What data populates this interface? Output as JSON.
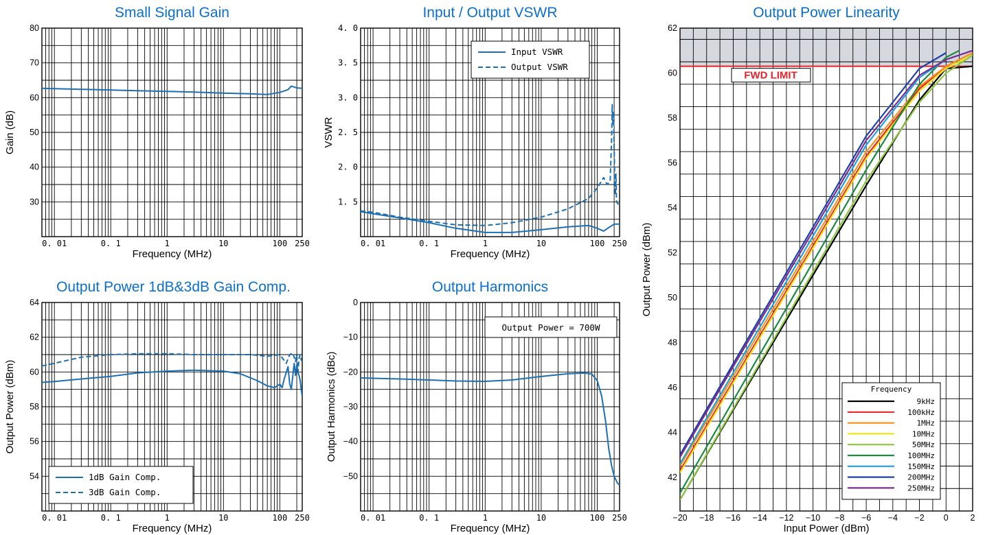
{
  "chart_data": [
    {
      "id": "gain",
      "type": "line",
      "title": "Small Signal Gain",
      "xlabel": "Frequency (MHz)",
      "ylabel": "Gain (dB)",
      "x_scale": "log",
      "xlim": [
        0.006,
        250
      ],
      "ylim": [
        20,
        80
      ],
      "yticks": [
        30,
        40,
        50,
        60,
        70,
        80
      ],
      "xticks": [
        {
          "v": 0.01,
          "label": "0. 01"
        },
        {
          "v": 0.1,
          "label": "0. 1"
        },
        {
          "v": 1,
          "label": "1"
        },
        {
          "v": 10,
          "label": "10"
        },
        {
          "v": 100,
          "label": "100"
        },
        {
          "v": 250,
          "label": "250"
        }
      ],
      "series": [
        {
          "color": "#1a6fb5",
          "dash": false,
          "x": [
            0.006,
            0.01,
            0.03,
            0.1,
            0.3,
            1,
            3,
            10,
            30,
            60,
            100,
            140,
            160,
            200,
            250
          ],
          "y": [
            62.7,
            62.6,
            62.4,
            62.2,
            62.0,
            61.8,
            61.6,
            61.3,
            61.1,
            60.9,
            61.5,
            62.3,
            63.3,
            62.8,
            62.7
          ]
        }
      ]
    },
    {
      "id": "vswr",
      "type": "line",
      "title": "Input / Output VSWR",
      "xlabel": "Frequency (MHz)",
      "ylabel": "VSWR",
      "x_scale": "log",
      "xlim": [
        0.006,
        250
      ],
      "ylim": [
        1.0,
        4.0
      ],
      "yticks": [
        {
          "v": 1.5,
          "label": "1. 5"
        },
        {
          "v": 2.0,
          "label": "2. 0"
        },
        {
          "v": 2.5,
          "label": "2. 5"
        },
        {
          "v": 3.0,
          "label": "3. 0"
        },
        {
          "v": 3.5,
          "label": "3. 5"
        },
        {
          "v": 4.0,
          "label": "4. 0"
        }
      ],
      "xticks": [
        {
          "v": 0.01,
          "label": "0. 01"
        },
        {
          "v": 0.1,
          "label": "0. 1"
        },
        {
          "v": 1,
          "label": "1"
        },
        {
          "v": 10,
          "label": "10"
        },
        {
          "v": 100,
          "label": "100"
        },
        {
          "v": 250,
          "label": "250"
        }
      ],
      "legend": [
        {
          "name": "Input VSWR",
          "dash": false
        },
        {
          "name": "Output VSWR",
          "dash": true
        }
      ],
      "series": [
        {
          "name": "Input VSWR",
          "color": "#1a6fb5",
          "dash": false,
          "x": [
            0.006,
            0.01,
            0.03,
            0.1,
            0.3,
            1,
            3,
            10,
            30,
            70,
            100,
            130,
            160,
            200,
            250
          ],
          "y": [
            1.36,
            1.33,
            1.27,
            1.2,
            1.12,
            1.06,
            1.06,
            1.1,
            1.14,
            1.16,
            1.12,
            1.08,
            1.13,
            1.18,
            1.18
          ]
        },
        {
          "name": "Output VSWR",
          "color": "#1a6fb5",
          "dash": true,
          "x": [
            0.006,
            0.01,
            0.03,
            0.1,
            0.3,
            1,
            3,
            10,
            30,
            70,
            100,
            130,
            150,
            170,
            180,
            185,
            190,
            195,
            200,
            205,
            210,
            215,
            220,
            230,
            250
          ],
          "y": [
            1.37,
            1.35,
            1.28,
            1.22,
            1.17,
            1.16,
            1.2,
            1.28,
            1.4,
            1.55,
            1.7,
            1.85,
            1.75,
            1.8,
            2.4,
            2.9,
            2.6,
            2.8,
            2.3,
            1.8,
            1.6,
            1.9,
            1.5,
            1.48,
            1.45
          ]
        }
      ]
    },
    {
      "id": "comp",
      "type": "line",
      "title": "Output Power 1dB&3dB Gain Comp.",
      "xlabel": "Frequency (MHz)",
      "ylabel": "Output Power (dBm)",
      "x_scale": "log",
      "xlim": [
        0.006,
        250
      ],
      "ylim": [
        52,
        64
      ],
      "yticks": [
        54,
        56,
        58,
        60,
        62,
        64
      ],
      "xticks": [
        {
          "v": 0.01,
          "label": "0. 01"
        },
        {
          "v": 0.1,
          "label": "0. 1"
        },
        {
          "v": 1,
          "label": "1"
        },
        {
          "v": 10,
          "label": "10"
        },
        {
          "v": 100,
          "label": "100"
        },
        {
          "v": 250,
          "label": "250"
        }
      ],
      "legend": [
        {
          "name": "1dB Gain Comp.",
          "dash": false
        },
        {
          "name": "3dB Gain Comp.",
          "dash": true
        }
      ],
      "series": [
        {
          "name": "1dB Gain Comp.",
          "color": "#1a6fb5",
          "dash": false,
          "x": [
            0.006,
            0.01,
            0.03,
            0.1,
            0.3,
            1,
            3,
            10,
            20,
            40,
            60,
            80,
            100,
            110,
            120,
            140,
            150,
            160,
            180,
            190,
            200,
            210,
            220,
            230,
            240,
            250
          ],
          "y": [
            59.4,
            59.45,
            59.6,
            59.75,
            59.95,
            60.05,
            60.1,
            60.05,
            59.9,
            59.5,
            59.2,
            59.1,
            59.3,
            59.1,
            59.6,
            60.3,
            59.3,
            59.0,
            60.5,
            59.8,
            60.4,
            60.0,
            59.8,
            59.5,
            59.0,
            58.6
          ]
        },
        {
          "name": "3dB Gain Comp.",
          "color": "#1a6fb5",
          "dash": true,
          "x": [
            0.006,
            0.01,
            0.03,
            0.1,
            0.3,
            1,
            3,
            10,
            30,
            60,
            100,
            130,
            150,
            170,
            190,
            200,
            210,
            220,
            230,
            240,
            250
          ],
          "y": [
            60.35,
            60.5,
            60.85,
            61.0,
            61.05,
            61.05,
            61.0,
            61.0,
            61.0,
            60.9,
            61.0,
            60.5,
            61.0,
            61.1,
            60.6,
            61.0,
            60.0,
            60.8,
            61.0,
            60.7,
            60.6
          ]
        }
      ]
    },
    {
      "id": "harm",
      "type": "line",
      "title": "Output Harmonics",
      "xlabel": "Frequency (MHz)",
      "ylabel": "Output Harmonics (dBc)",
      "x_scale": "log",
      "xlim": [
        0.006,
        250
      ],
      "ylim": [
        -60,
        0
      ],
      "yticks": [
        {
          "v": 0,
          "label": "0"
        },
        {
          "v": -10,
          "label": "−10"
        },
        {
          "v": -20,
          "label": "−20"
        },
        {
          "v": -30,
          "label": "−30"
        },
        {
          "v": -40,
          "label": "−40"
        },
        {
          "v": -50,
          "label": "−50"
        }
      ],
      "xticks": [
        {
          "v": 0.01,
          "label": "0. 01"
        },
        {
          "v": 0.1,
          "label": "0. 1"
        },
        {
          "v": 1,
          "label": "1"
        },
        {
          "v": 10,
          "label": "10"
        },
        {
          "v": 100,
          "label": "100"
        },
        {
          "v": 250,
          "label": "250"
        }
      ],
      "annotation": "Output Power = 700W",
      "series": [
        {
          "color": "#1a6fb5",
          "dash": false,
          "x": [
            0.006,
            0.01,
            0.03,
            0.1,
            0.3,
            1,
            3,
            10,
            30,
            60,
            80,
            100,
            120,
            140,
            160,
            180,
            200,
            230,
            250
          ],
          "y": [
            -21.7,
            -21.8,
            -22.0,
            -22.3,
            -22.6,
            -22.7,
            -22.3,
            -21.3,
            -20.5,
            -20.3,
            -20.6,
            -22.5,
            -27.0,
            -34.0,
            -42.0,
            -47.0,
            -50.0,
            -52.0,
            -52.5
          ]
        }
      ]
    },
    {
      "id": "linearity",
      "type": "line",
      "title": "Output Power Linearity",
      "xlabel": "Input Power (dBm)",
      "ylabel": "Output Power (dBm)",
      "x_scale": "linear",
      "xlim": [
        -20,
        2
      ],
      "ylim": [
        40.5,
        62
      ],
      "yticks": [
        42,
        44,
        46,
        48,
        50,
        52,
        54,
        56,
        58,
        60,
        62
      ],
      "xticks": [
        {
          "v": -20,
          "label": "−20"
        },
        {
          "v": -18,
          "label": "−18"
        },
        {
          "v": -16,
          "label": "−16"
        },
        {
          "v": -14,
          "label": "−14"
        },
        {
          "v": -12,
          "label": "−12"
        },
        {
          "v": -10,
          "label": "−10"
        },
        {
          "v": -8,
          "label": "−8"
        },
        {
          "v": -6,
          "label": "−6"
        },
        {
          "v": -4,
          "label": "−4"
        },
        {
          "v": -2,
          "label": "−2"
        },
        {
          "v": 0,
          "label": "0"
        },
        {
          "v": 2,
          "label": "2"
        }
      ],
      "limit_value": 60.3,
      "limit_label": "FWD LIMIT",
      "shade_from": 60.3,
      "legend_title": "Frequency",
      "series": [
        {
          "name": "9kHz",
          "color": "#000000",
          "x": [
            -20,
            -6,
            -2,
            0,
            2
          ],
          "y": [
            41.0,
            55.0,
            58.8,
            60.2,
            60.3
          ]
        },
        {
          "name": "100kHz",
          "color": "#e8232a",
          "x": [
            -20,
            -6,
            -2,
            0,
            2
          ],
          "y": [
            42.3,
            56.3,
            59.3,
            60.3,
            60.9
          ]
        },
        {
          "name": "1MHz",
          "color": "#f7941d",
          "x": [
            -20,
            -6,
            -2,
            0,
            2
          ],
          "y": [
            42.5,
            56.5,
            59.4,
            60.3,
            60.9
          ]
        },
        {
          "name": "10MHz",
          "color": "#f2e31b",
          "x": [
            -20,
            -6,
            -2,
            0,
            2
          ],
          "y": [
            42.2,
            56.2,
            59.2,
            60.2,
            60.8
          ]
        },
        {
          "name": "50MHz",
          "color": "#8dc63f",
          "x": [
            -20,
            -6,
            -2,
            0,
            2
          ],
          "y": [
            41.0,
            55.2,
            58.7,
            60.0,
            60.8
          ]
        },
        {
          "name": "100MHz",
          "color": "#1a8a3e",
          "x": [
            -20,
            -6,
            -2,
            0,
            1
          ],
          "y": [
            41.3,
            55.7,
            59.5,
            60.7,
            61.0
          ]
        },
        {
          "name": "150MHz",
          "color": "#1ea0e0",
          "x": [
            -20,
            -6,
            -2,
            0,
            2
          ],
          "y": [
            42.6,
            56.8,
            59.8,
            60.6,
            61.0
          ]
        },
        {
          "name": "200MHz",
          "color": "#1e3fa8",
          "x": [
            -20,
            -6,
            -2,
            0
          ],
          "y": [
            43.0,
            57.2,
            60.2,
            60.9
          ]
        },
        {
          "name": "250MHz",
          "color": "#7d2e8e",
          "x": [
            -20,
            -6,
            -2,
            0,
            2
          ],
          "y": [
            42.9,
            57.0,
            59.9,
            60.6,
            61.0
          ]
        }
      ]
    }
  ]
}
